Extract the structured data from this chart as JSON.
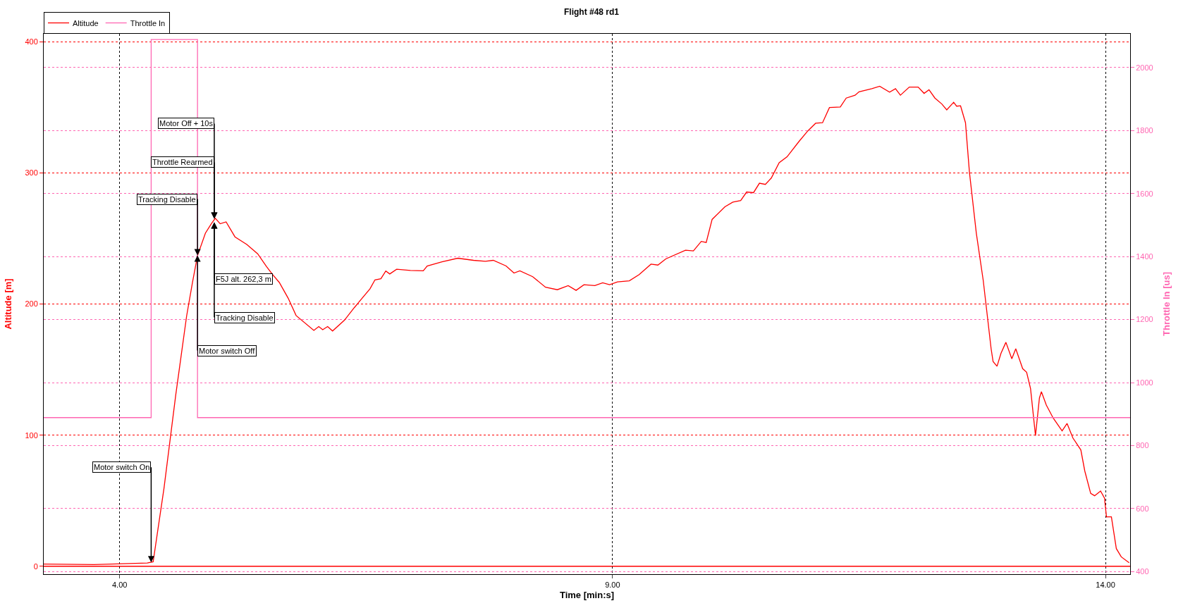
{
  "chart_data": {
    "type": "line",
    "title": "Flight #48 rd1",
    "xlabel": "Time [min:s]",
    "ylabel": "Altitude [m]",
    "y2label": "Throttle In [us]",
    "xlim": [
      3.23,
      14.25
    ],
    "xticks": [
      {
        "value": 4,
        "label": "4.00"
      },
      {
        "value": 9,
        "label": "9.00"
      },
      {
        "value": 14,
        "label": "14.00"
      }
    ],
    "ylim": [
      -6,
      406
    ],
    "yticks": [
      0,
      100,
      200,
      300,
      400
    ],
    "y2lim": [
      392,
      2107
    ],
    "y2ticks": [
      400,
      600,
      800,
      1000,
      1200,
      1400,
      1600,
      1800,
      2000
    ],
    "grid": true,
    "legend": "top left",
    "marker": "none",
    "line_style": "solid",
    "series": [
      {
        "name": "Altitude",
        "color": "#ff0000",
        "x": [
          3.23,
          3.74,
          4.28,
          4.34,
          4.45,
          4.57,
          4.68,
          4.74,
          4.79,
          4.87,
          4.93,
          4.97,
          5.02,
          5.08,
          5.17,
          5.29,
          5.4,
          5.49,
          5.55,
          5.62,
          5.71,
          5.79,
          5.97,
          6.02,
          6.06,
          6.11,
          6.16,
          6.28,
          6.38,
          6.54,
          6.59,
          6.65,
          6.7,
          6.74,
          6.81,
          6.95,
          7.08,
          7.12,
          7.27,
          7.43,
          7.59,
          7.71,
          7.79,
          7.92,
          8.0,
          8.06,
          8.19,
          8.32,
          8.44,
          8.55,
          8.63,
          8.71,
          8.82,
          8.9,
          8.97,
          9.05,
          9.17,
          9.27,
          9.39,
          9.46,
          9.54,
          9.74,
          9.82,
          9.9,
          9.95,
          10.01,
          10.14,
          10.22,
          10.3,
          10.36,
          10.43,
          10.49,
          10.55,
          10.61,
          10.69,
          10.77,
          10.89,
          10.98,
          11.06,
          11.13,
          11.2,
          11.31,
          11.37,
          11.46,
          11.5,
          11.63,
          11.71,
          11.81,
          11.87,
          11.92,
          12.01,
          12.1,
          12.16,
          12.21,
          12.27,
          12.34,
          12.39,
          12.46,
          12.49,
          12.53,
          12.58,
          12.62,
          12.69,
          12.76,
          12.84,
          12.86,
          12.9,
          12.94,
          12.99,
          13.05,
          13.09,
          13.16,
          13.2,
          13.24,
          13.29,
          13.33,
          13.35,
          13.4,
          13.47,
          13.56,
          13.61,
          13.67,
          13.75,
          13.79,
          13.85,
          13.89,
          13.95,
          13.99,
          14.01,
          14.06,
          14.11,
          14.16,
          14.24
        ],
        "values": [
          1.7,
          1.3,
          2.5,
          3.4,
          59.5,
          131,
          191,
          216.8,
          236.9,
          254,
          261.2,
          265.4,
          261.2,
          262.6,
          251.2,
          245.4,
          238.3,
          228.5,
          222.6,
          216.4,
          204.4,
          191.2,
          179.9,
          182.8,
          180.4,
          182.8,
          179.4,
          187.6,
          197.2,
          211.6,
          218.4,
          219.3,
          225.1,
          222.9,
          226.5,
          225.6,
          225.3,
          229,
          232.1,
          234.9,
          233.3,
          232.6,
          233.3,
          229,
          223.6,
          225.3,
          220.8,
          212.8,
          210.9,
          214,
          210.4,
          214.7,
          214,
          216.2,
          214.7,
          216.9,
          217.7,
          222.4,
          230.4,
          229.7,
          234.4,
          241,
          240.5,
          247.7,
          246.9,
          264.5,
          274.1,
          277.7,
          278.9,
          285.4,
          284.9,
          292.1,
          291.2,
          296,
          307.7,
          312.2,
          323.8,
          331.9,
          337.8,
          338.2,
          349.8,
          350.2,
          357,
          359.2,
          361.8,
          364.2,
          366,
          361.5,
          364.2,
          359.2,
          365.4,
          365.4,
          360.6,
          363.3,
          357,
          352.5,
          348,
          353.8,
          350.8,
          351.1,
          338.2,
          300.5,
          253.9,
          218,
          165.9,
          156.1,
          152.5,
          162.4,
          170.8,
          158.2,
          165.9,
          150.7,
          148,
          135.5,
          99.6,
          128.3,
          133.1,
          122.9,
          113,
          103.2,
          108.9,
          97.8,
          88.8,
          72.7,
          55.6,
          53.8,
          57.4,
          52,
          37.7,
          37.7,
          13.5,
          7.2,
          2.7
        ]
      },
      {
        "name": "Throttle In",
        "color": "#ff66b2",
        "type": "step",
        "axis": "y2",
        "x": [
          3.23,
          4.32,
          4.79,
          14.25
        ],
        "values": [
          889,
          2089,
          889,
          889
        ]
      }
    ],
    "ref_lines": [
      {
        "axis": "y",
        "value": 0,
        "color": "#ff0000"
      }
    ],
    "annotations": [
      {
        "text": "Motor switch On",
        "x": 4.32,
        "y": 3
      },
      {
        "text": "Tracking Disable",
        "x": 4.79,
        "y": 237
      },
      {
        "text": "Motor switch Off",
        "x": 4.79,
        "y": 237
      },
      {
        "text": "Throttle Rearmed",
        "x": 4.96,
        "y": 265
      },
      {
        "text": "Motor Off + 10s",
        "x": 4.96,
        "y": 265
      },
      {
        "text": "F5J alt. 262,3 m",
        "x": 4.96,
        "y": 262.3
      },
      {
        "text": "Tracking Disable",
        "x": 4.96,
        "y": 262.3
      }
    ]
  }
}
